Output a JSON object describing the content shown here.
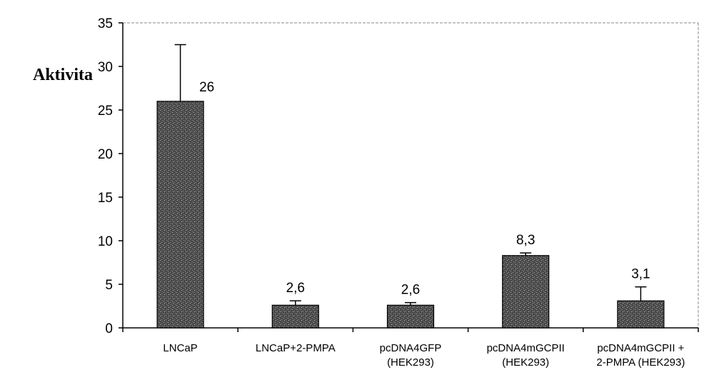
{
  "chart_data": {
    "type": "bar",
    "title": "",
    "xlabel": "",
    "ylabel": "Aktivita",
    "ylim": [
      0,
      35
    ],
    "yticks": [
      0,
      5,
      10,
      15,
      20,
      25,
      30,
      35
    ],
    "grid": false,
    "legend": "none",
    "categories": [
      [
        "LNCaP"
      ],
      [
        "LNCaP+2-PMPA"
      ],
      [
        "pcDNA4GFP",
        "(HEK293)"
      ],
      [
        "pcDNA4mGCPII",
        "(HEK293)"
      ],
      [
        "pcDNA4mGCPII +",
        "2-PMPA (HEK293)"
      ]
    ],
    "values": [
      26,
      2.6,
      2.6,
      8.3,
      3.1
    ],
    "data_labels": [
      "26",
      "2,6",
      "2,6",
      "8,3",
      "3,1"
    ],
    "error_upper": [
      32.5,
      3.1,
      2.9,
      8.6,
      4.7
    ],
    "colors": {
      "bar": "#555555",
      "bar_speckle": "#9a9a9a",
      "axis": "#000000",
      "frame": "#888888"
    }
  }
}
